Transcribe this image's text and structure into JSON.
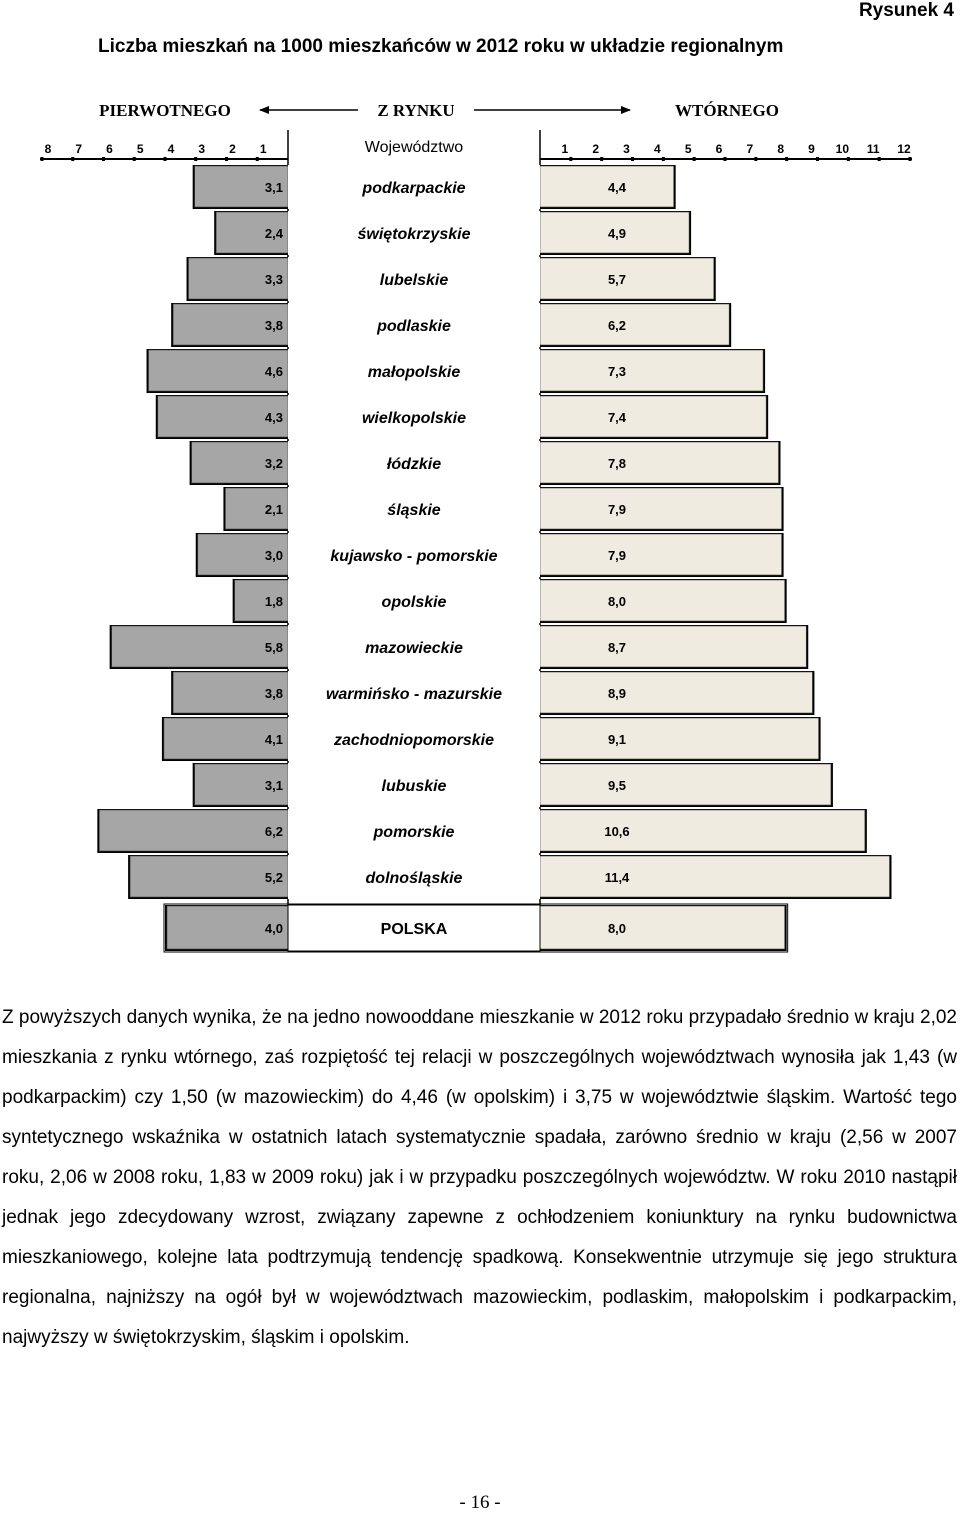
{
  "figure_label": "Rysunek 4",
  "chart_data": {
    "type": "bar",
    "orientation": "horizontal-tornado",
    "title": "Liczba mieszkań na 1000 mieszkańców w 2012 roku w układzie regionalnym",
    "market_labels": {
      "left": "PIERWOTNEGO",
      "center": "Z RYNKU",
      "right": "WTÓRNEGO"
    },
    "category_header": "Województwo",
    "left_axis_ticks": [
      "8",
      "7",
      "6",
      "5",
      "4",
      "3",
      "2",
      "1"
    ],
    "right_axis_ticks": [
      "1",
      "2",
      "3",
      "4",
      "5",
      "6",
      "7",
      "8",
      "9",
      "10",
      "11",
      "12"
    ],
    "left_axis_range": [
      0,
      8
    ],
    "right_axis_range": [
      0,
      12
    ],
    "series": [
      {
        "name": "PIERWOTNEGO",
        "side": "left",
        "color": "#a6a6a6"
      },
      {
        "name": "WTÓRNEGO",
        "side": "right",
        "color": "#efebe0"
      }
    ],
    "rows": [
      {
        "region": "podkarpackie",
        "primary": 3.1,
        "primary_label": "3,1",
        "secondary": 4.4,
        "secondary_label": "4,4"
      },
      {
        "region": "świętokrzyskie",
        "primary": 2.4,
        "primary_label": "2,4",
        "secondary": 4.9,
        "secondary_label": "4,9"
      },
      {
        "region": "lubelskie",
        "primary": 3.3,
        "primary_label": "3,3",
        "secondary": 5.7,
        "secondary_label": "5,7"
      },
      {
        "region": "podlaskie",
        "primary": 3.8,
        "primary_label": "3,8",
        "secondary": 6.2,
        "secondary_label": "6,2"
      },
      {
        "region": "małopolskie",
        "primary": 4.6,
        "primary_label": "4,6",
        "secondary": 7.3,
        "secondary_label": "7,3"
      },
      {
        "region": "wielkopolskie",
        "primary": 4.3,
        "primary_label": "4,3",
        "secondary": 7.4,
        "secondary_label": "7,4"
      },
      {
        "region": "łódzkie",
        "primary": 3.2,
        "primary_label": "3,2",
        "secondary": 7.8,
        "secondary_label": "7,8"
      },
      {
        "region": "śląskie",
        "primary": 2.1,
        "primary_label": "2,1",
        "secondary": 7.9,
        "secondary_label": "7,9"
      },
      {
        "region": "kujawsko - pomorskie",
        "primary": 3.0,
        "primary_label": "3,0",
        "secondary": 7.9,
        "secondary_label": "7,9"
      },
      {
        "region": "opolskie",
        "primary": 1.8,
        "primary_label": "1,8",
        "secondary": 8.0,
        "secondary_label": "8,0"
      },
      {
        "region": "mazowieckie",
        "primary": 5.8,
        "primary_label": "5,8",
        "secondary": 8.7,
        "secondary_label": "8,7"
      },
      {
        "region": "warmińsko - mazurskie",
        "primary": 3.8,
        "primary_label": "3,8",
        "secondary": 8.9,
        "secondary_label": "8,9"
      },
      {
        "region": "zachodniopomorskie",
        "primary": 4.1,
        "primary_label": "4,1",
        "secondary": 9.1,
        "secondary_label": "9,1"
      },
      {
        "region": "lubuskie",
        "primary": 3.1,
        "primary_label": "3,1",
        "secondary": 9.5,
        "secondary_label": "9,5"
      },
      {
        "region": "pomorskie",
        "primary": 6.2,
        "primary_label": "6,2",
        "secondary": 10.6,
        "secondary_label": "10,6"
      },
      {
        "region": "dolnośląskie",
        "primary": 5.2,
        "primary_label": "5,2",
        "secondary": 11.4,
        "secondary_label": "11,4"
      },
      {
        "region": "POLSKA",
        "primary": 4.0,
        "primary_label": "4,0",
        "secondary": 8.0,
        "secondary_label": "8,0",
        "is_total": true
      }
    ]
  },
  "body_text": "Z powyższych danych wynika, że na jedno nowooddane mieszkanie w 2012 roku przypadało średnio w kraju 2,02 mieszkania z rynku wtórnego, zaś rozpiętość tej relacji w poszczególnych województwach wynosiła jak 1,43 (w podkarpackim) czy 1,50 (w mazowieckim) do 4,46 (w opolskim) i 3,75 w województwie śląskim. Wartość tego syntetycznego wskaźnika w ostatnich latach systematycznie spadała, zarówno średnio w kraju (2,56 w 2007 roku, 2,06 w 2008 roku, 1,83 w 2009 roku) jak i w przypadku poszczególnych województw. W roku 2010 nastąpił jednak jego zdecydowany wzrost, związany zapewne z ochłodzeniem koniunktury na rynku budownictwa mieszkaniowego, kolejne lata podtrzymują tendencję spadkową. Konsekwentnie utrzymuje się jego struktura regionalna, najniższy na ogół był w województwach mazowieckim, podlaskim, małopolskim i podkarpackim, najwyższy w świętokrzyskim, śląskim i opolskim.",
  "page_number": "- 16 -"
}
